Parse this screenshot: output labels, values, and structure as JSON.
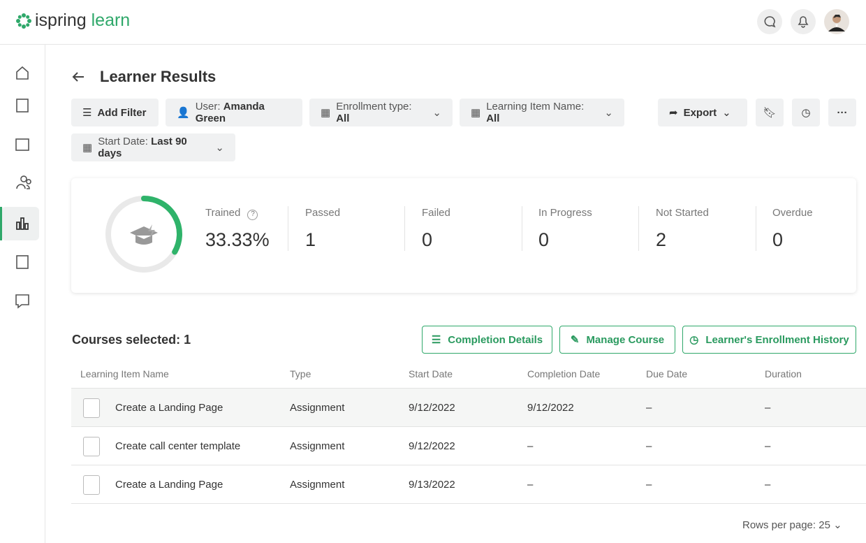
{
  "header": {
    "logo_left": "ispring",
    "logo_right": "learn"
  },
  "page": {
    "title": "Learner Results"
  },
  "filters": [
    {
      "label": "Add Filter"
    },
    {
      "label": "User:",
      "value": "Amanda Green"
    },
    {
      "label": "Enrollment type:",
      "value": "All"
    },
    {
      "label": "Learning Item Name:",
      "value": "All"
    },
    {
      "label": "Start Date:",
      "value": "Last 90 days"
    }
  ],
  "actions": {
    "export": "Export"
  },
  "stats": [
    {
      "label": "Trained",
      "value": 33.33,
      "value_label": "33.33%"
    },
    {
      "label": "Passed",
      "value": 1
    },
    {
      "label": "Failed",
      "value": 0
    },
    {
      "label": "In Progress",
      "value": 0
    },
    {
      "label": "Not Started",
      "value": 2
    },
    {
      "label": "Overdue",
      "value": 0
    }
  ],
  "courses_selected": "Courses selected: 1",
  "buttons": [
    "Completion Details",
    "Manage Course",
    "Learner's Enrollment History"
  ],
  "table": {
    "columns": [
      "Learning Item Name",
      "Type",
      "Start Date",
      "Completion Date",
      "Due Date",
      "Duration"
    ],
    "rows": [
      [
        "Create a Landing Page",
        "Assignment",
        "9/12/2022",
        "9/12/2022",
        "–",
        "–"
      ],
      [
        "Create call center template",
        "Assignment",
        "9/12/2022",
        "–",
        "–",
        "–"
      ],
      [
        "Create a Landing Page",
        "Assignment",
        "9/13/2022",
        "–",
        "–",
        "–"
      ]
    ]
  },
  "footer": {
    "rows_per_page": "Rows per page: 25"
  }
}
